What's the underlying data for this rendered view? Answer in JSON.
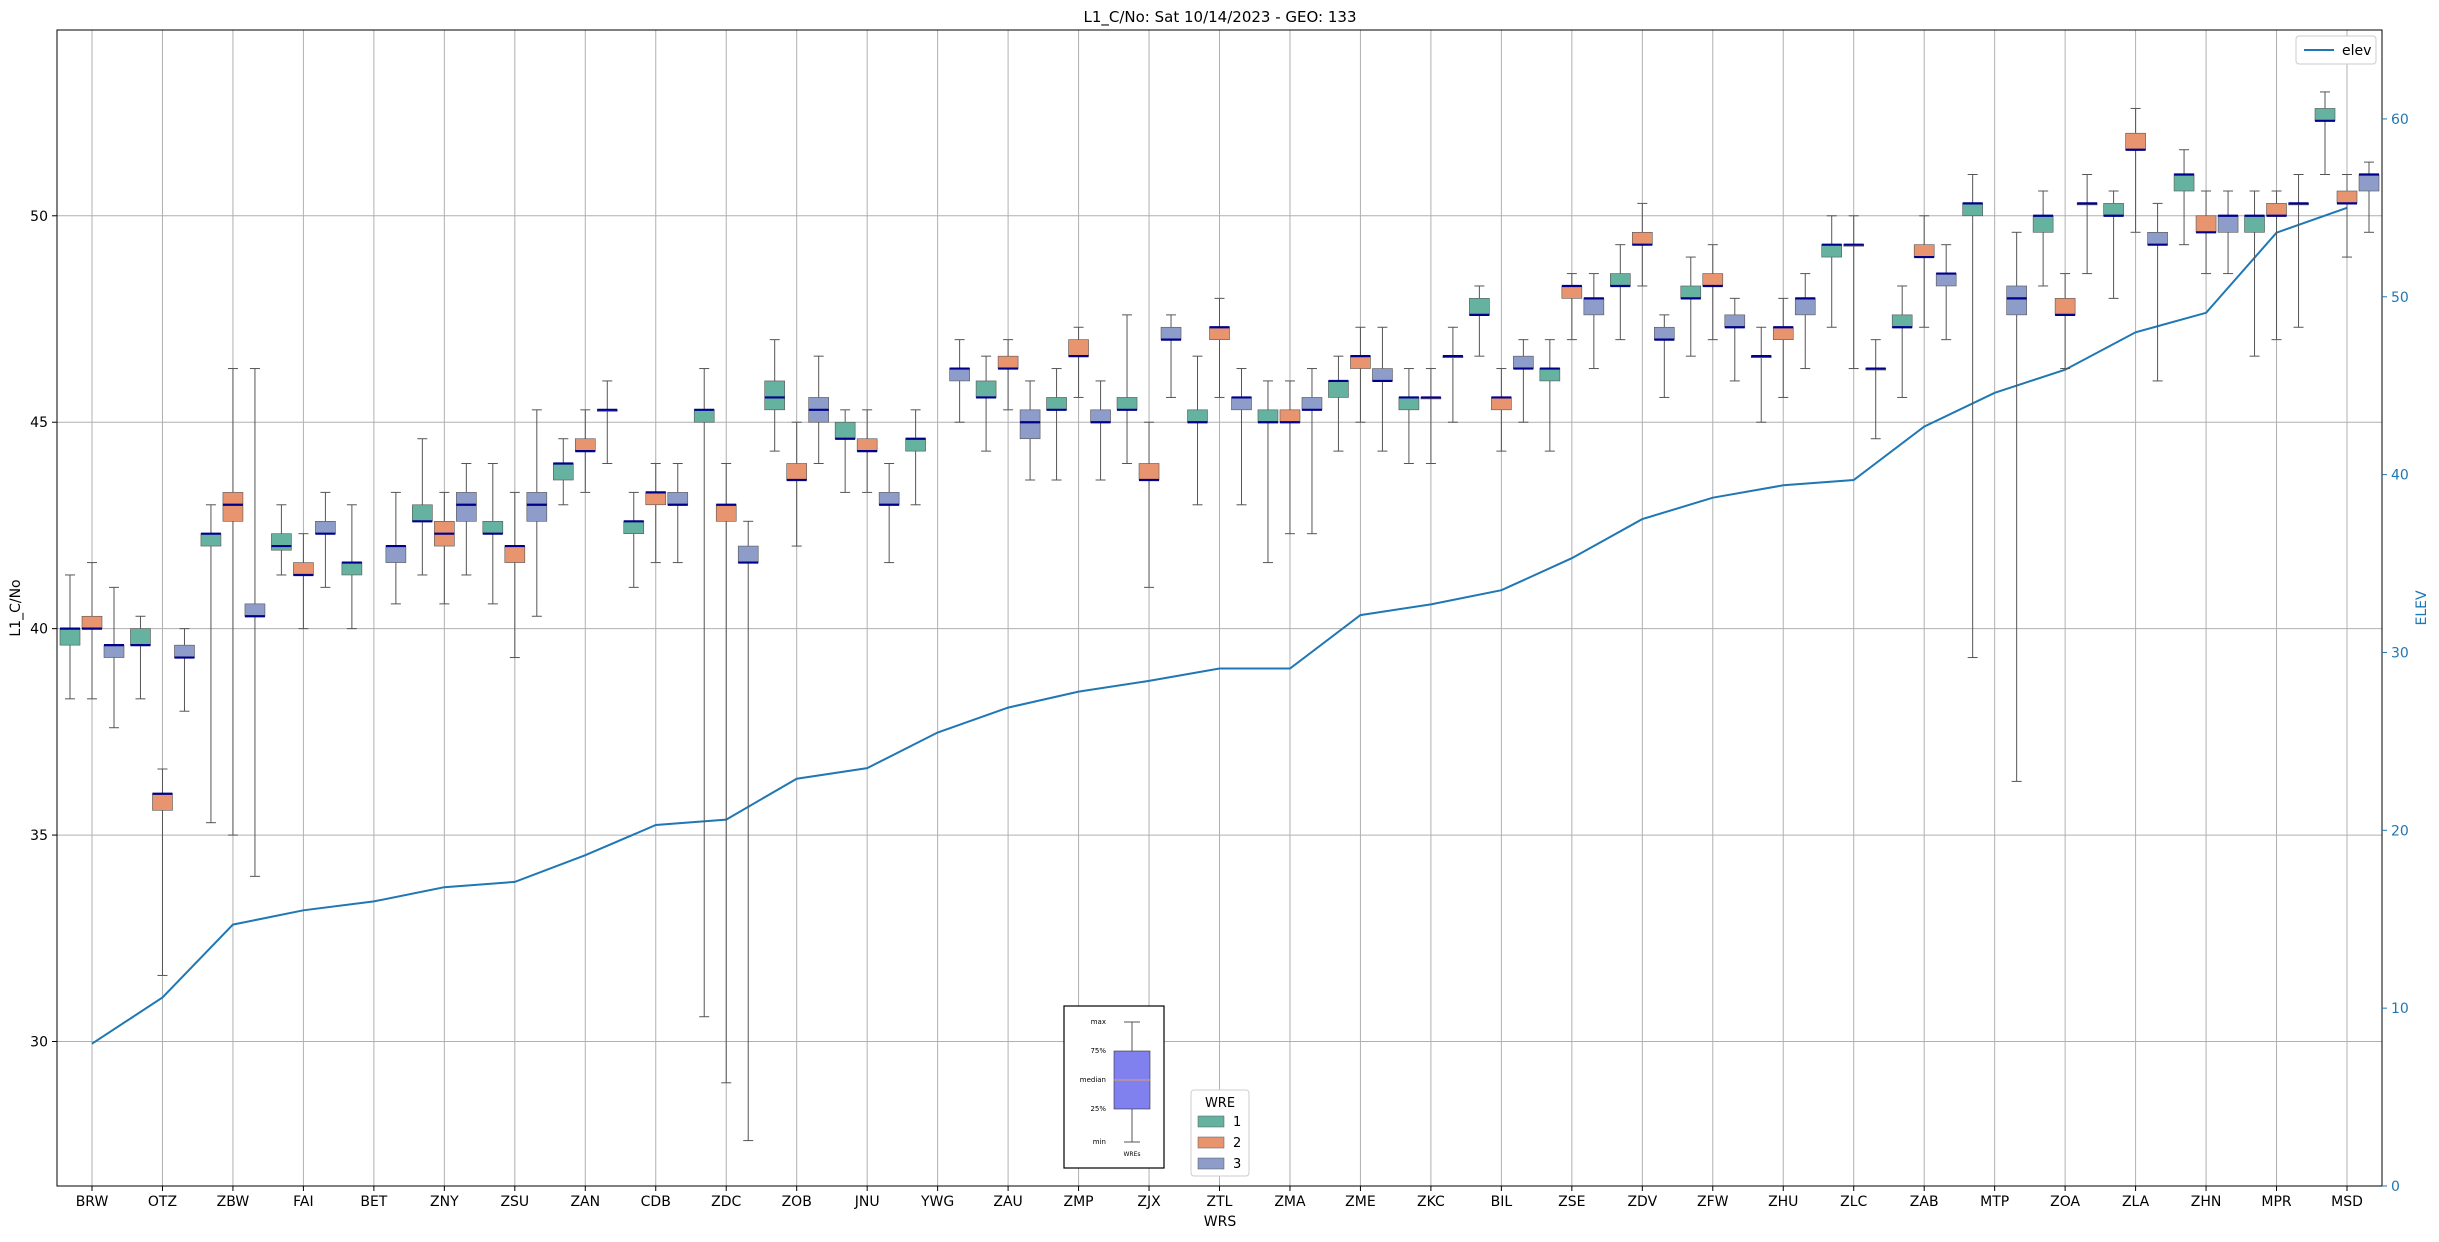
{
  "chart_data": {
    "type": "box",
    "title": "L1_C/No: Sat 10/14/2023 - GEO: 133",
    "xlabel": "WRS",
    "ylabel": "L1_C/No",
    "y2label": "ELEV",
    "ylim": [
      26.5,
      54.5
    ],
    "y2lim": [
      0,
      65
    ],
    "yticks": [
      30,
      35,
      40,
      45,
      50
    ],
    "y2ticks": [
      0,
      10,
      20,
      30,
      40,
      50,
      60
    ],
    "grid": true,
    "categories": [
      "BRW",
      "OTZ",
      "ZBW",
      "FAI",
      "BET",
      "ZNY",
      "ZSU",
      "ZAN",
      "CDB",
      "ZDC",
      "ZOB",
      "JNU",
      "YWG",
      "ZAU",
      "ZMP",
      "ZJX",
      "ZTL",
      "ZMA",
      "ZME",
      "ZKC",
      "BIL",
      "ZSE",
      "ZDV",
      "ZFW",
      "ZHU",
      "ZLC",
      "ZAB",
      "MTP",
      "ZOA",
      "ZLA",
      "ZHN",
      "MPR",
      "MSD"
    ],
    "colors": {
      "1": "#66b2a0",
      "2": "#e8956f",
      "3": "#8d9cc8",
      "median": "#00008b",
      "elev": "#1f77b4"
    },
    "legend_wre": {
      "title": "WRE",
      "position": "bottom-center",
      "entries": [
        {
          "label": "1",
          "color": "#66b2a0"
        },
        {
          "label": "2",
          "color": "#e8956f"
        },
        {
          "label": "3",
          "color": "#8d9cc8"
        }
      ]
    },
    "legend_elev": {
      "label": "elev",
      "position": "top-right"
    },
    "key_labels": {
      "max": "max",
      "p75": "75%",
      "median": "median",
      "p25": "25%",
      "min": "min",
      "wre": "WREs"
    },
    "elev": {
      "name": "elev",
      "values": [
        8.0,
        10.6,
        14.7,
        15.5,
        16.0,
        16.8,
        17.1,
        18.6,
        20.3,
        20.6,
        22.9,
        23.5,
        25.5,
        26.9,
        27.8,
        28.4,
        29.1,
        29.1,
        32.1,
        32.7,
        33.5,
        35.3,
        37.5,
        38.7,
        39.4,
        39.7,
        42.7,
        44.6,
        45.9,
        48.0,
        49.1,
        53.6,
        55.0
      ]
    },
    "boxes": [
      {
        "cat": "BRW",
        "wre": 1,
        "min": 38.3,
        "q1": 39.6,
        "med": 40.0,
        "q3": 40.0,
        "max": 41.3
      },
      {
        "cat": "BRW",
        "wre": 2,
        "min": 38.3,
        "q1": 40.0,
        "med": 40.0,
        "q3": 40.3,
        "max": 41.6
      },
      {
        "cat": "BRW",
        "wre": 3,
        "min": 37.6,
        "q1": 39.3,
        "med": 39.6,
        "q3": 39.6,
        "max": 41.0
      },
      {
        "cat": "OTZ",
        "wre": 1,
        "min": 38.3,
        "q1": 39.6,
        "med": 39.6,
        "q3": 40.0,
        "max": 40.3
      },
      {
        "cat": "OTZ",
        "wre": 2,
        "min": 31.6,
        "q1": 35.6,
        "med": 36.0,
        "q3": 36.0,
        "max": 36.6
      },
      {
        "cat": "OTZ",
        "wre": 3,
        "min": 38.0,
        "q1": 39.3,
        "med": 39.3,
        "q3": 39.6,
        "max": 40.0
      },
      {
        "cat": "ZBW",
        "wre": 1,
        "min": 35.3,
        "q1": 42.0,
        "med": 42.3,
        "q3": 42.3,
        "max": 43.0
      },
      {
        "cat": "ZBW",
        "wre": 2,
        "min": 35.0,
        "q1": 42.6,
        "med": 43.0,
        "q3": 43.3,
        "max": 46.3
      },
      {
        "cat": "ZBW",
        "wre": 3,
        "min": 34.0,
        "q1": 40.3,
        "med": 40.3,
        "q3": 40.6,
        "max": 46.3
      },
      {
        "cat": "FAI",
        "wre": 1,
        "min": 41.3,
        "q1": 41.9,
        "med": 42.0,
        "q3": 42.3,
        "max": 43.0
      },
      {
        "cat": "FAI",
        "wre": 2,
        "min": 40.0,
        "q1": 41.3,
        "med": 41.3,
        "q3": 41.6,
        "max": 42.3
      },
      {
        "cat": "FAI",
        "wre": 3,
        "min": 41.0,
        "q1": 42.3,
        "med": 42.3,
        "q3": 42.6,
        "max": 43.3
      },
      {
        "cat": "BET",
        "wre": 1,
        "min": 40.0,
        "q1": 41.3,
        "med": 41.6,
        "q3": 41.6,
        "max": 43.0
      },
      {
        "cat": "BET",
        "wre": 3,
        "min": 40.6,
        "q1": 41.6,
        "med": 42.0,
        "q3": 42.0,
        "max": 43.3
      },
      {
        "cat": "ZNY",
        "wre": 1,
        "min": 41.3,
        "q1": 42.6,
        "med": 42.6,
        "q3": 43.0,
        "max": 44.6
      },
      {
        "cat": "ZNY",
        "wre": 2,
        "min": 40.6,
        "q1": 42.0,
        "med": 42.3,
        "q3": 42.6,
        "max": 43.3
      },
      {
        "cat": "ZNY",
        "wre": 3,
        "min": 41.3,
        "q1": 42.6,
        "med": 43.0,
        "q3": 43.3,
        "max": 44.0
      },
      {
        "cat": "ZSU",
        "wre": 1,
        "min": 40.6,
        "q1": 42.3,
        "med": 42.3,
        "q3": 42.6,
        "max": 44.0
      },
      {
        "cat": "ZSU",
        "wre": 2,
        "min": 39.3,
        "q1": 41.6,
        "med": 42.0,
        "q3": 42.0,
        "max": 43.3
      },
      {
        "cat": "ZSU",
        "wre": 3,
        "min": 40.3,
        "q1": 42.6,
        "med": 43.0,
        "q3": 43.3,
        "max": 45.3
      },
      {
        "cat": "ZAN",
        "wre": 1,
        "min": 43.0,
        "q1": 43.6,
        "med": 44.0,
        "q3": 44.0,
        "max": 44.6
      },
      {
        "cat": "ZAN",
        "wre": 2,
        "min": 43.3,
        "q1": 44.3,
        "med": 44.3,
        "q3": 44.6,
        "max": 45.3
      },
      {
        "cat": "ZAN",
        "wre": 3,
        "min": 44.0,
        "q1": 45.3,
        "med": 45.3,
        "q3": 45.3,
        "max": 46.0
      },
      {
        "cat": "CDB",
        "wre": 1,
        "min": 41.0,
        "q1": 42.3,
        "med": 42.6,
        "q3": 42.6,
        "max": 43.3
      },
      {
        "cat": "CDB",
        "wre": 2,
        "min": 41.6,
        "q1": 43.0,
        "med": 43.3,
        "q3": 43.3,
        "max": 44.0
      },
      {
        "cat": "CDB",
        "wre": 3,
        "min": 41.6,
        "q1": 43.0,
        "med": 43.0,
        "q3": 43.3,
        "max": 44.0
      },
      {
        "cat": "ZDC",
        "wre": 1,
        "min": 30.6,
        "q1": 45.0,
        "med": 45.3,
        "q3": 45.3,
        "max": 46.3
      },
      {
        "cat": "ZDC",
        "wre": 2,
        "min": 29.0,
        "q1": 42.6,
        "med": 43.0,
        "q3": 43.0,
        "max": 44.0
      },
      {
        "cat": "ZDC",
        "wre": 3,
        "min": 27.6,
        "q1": 41.6,
        "med": 41.6,
        "q3": 42.0,
        "max": 42.6
      },
      {
        "cat": "ZOB",
        "wre": 1,
        "min": 44.3,
        "q1": 45.3,
        "med": 45.6,
        "q3": 46.0,
        "max": 47.0
      },
      {
        "cat": "ZOB",
        "wre": 2,
        "min": 42.0,
        "q1": 43.6,
        "med": 43.6,
        "q3": 44.0,
        "max": 45.0
      },
      {
        "cat": "ZOB",
        "wre": 3,
        "min": 44.0,
        "q1": 45.0,
        "med": 45.3,
        "q3": 45.6,
        "max": 46.6
      },
      {
        "cat": "JNU",
        "wre": 1,
        "min": 43.3,
        "q1": 44.6,
        "med": 44.6,
        "q3": 45.0,
        "max": 45.3
      },
      {
        "cat": "JNU",
        "wre": 2,
        "min": 43.3,
        "q1": 44.3,
        "med": 44.3,
        "q3": 44.6,
        "max": 45.3
      },
      {
        "cat": "JNU",
        "wre": 3,
        "min": 41.6,
        "q1": 43.0,
        "med": 43.0,
        "q3": 43.3,
        "max": 44.0
      },
      {
        "cat": "YWG",
        "wre": 1,
        "min": 43.0,
        "q1": 44.3,
        "med": 44.6,
        "q3": 44.6,
        "max": 45.3
      },
      {
        "cat": "YWG",
        "wre": 3,
        "min": 45.0,
        "q1": 46.0,
        "med": 46.3,
        "q3": 46.3,
        "max": 47.0
      },
      {
        "cat": "ZAU",
        "wre": 1,
        "min": 44.3,
        "q1": 45.6,
        "med": 45.6,
        "q3": 46.0,
        "max": 46.6
      },
      {
        "cat": "ZAU",
        "wre": 2,
        "min": 45.3,
        "q1": 46.3,
        "med": 46.3,
        "q3": 46.6,
        "max": 47.0
      },
      {
        "cat": "ZAU",
        "wre": 3,
        "min": 43.6,
        "q1": 44.6,
        "med": 45.0,
        "q3": 45.3,
        "max": 46.0
      },
      {
        "cat": "ZMP",
        "wre": 1,
        "min": 43.6,
        "q1": 45.3,
        "med": 45.3,
        "q3": 45.6,
        "max": 46.3
      },
      {
        "cat": "ZMP",
        "wre": 2,
        "min": 45.6,
        "q1": 46.6,
        "med": 46.6,
        "q3": 47.0,
        "max": 47.3
      },
      {
        "cat": "ZMP",
        "wre": 3,
        "min": 43.6,
        "q1": 45.0,
        "med": 45.0,
        "q3": 45.3,
        "max": 46.0
      },
      {
        "cat": "ZJX",
        "wre": 1,
        "min": 44.0,
        "q1": 45.3,
        "med": 45.3,
        "q3": 45.6,
        "max": 47.6
      },
      {
        "cat": "ZJX",
        "wre": 2,
        "min": 41.0,
        "q1": 43.6,
        "med": 43.6,
        "q3": 44.0,
        "max": 45.0
      },
      {
        "cat": "ZJX",
        "wre": 3,
        "min": 45.6,
        "q1": 47.0,
        "med": 47.0,
        "q3": 47.3,
        "max": 47.6
      },
      {
        "cat": "ZTL",
        "wre": 1,
        "min": 43.0,
        "q1": 45.0,
        "med": 45.0,
        "q3": 45.3,
        "max": 46.6
      },
      {
        "cat": "ZTL",
        "wre": 2,
        "min": 45.6,
        "q1": 47.0,
        "med": 47.3,
        "q3": 47.3,
        "max": 48.0
      },
      {
        "cat": "ZTL",
        "wre": 3,
        "min": 43.0,
        "q1": 45.3,
        "med": 45.6,
        "q3": 45.6,
        "max": 46.3
      },
      {
        "cat": "ZMA",
        "wre": 1,
        "min": 41.6,
        "q1": 45.0,
        "med": 45.0,
        "q3": 45.3,
        "max": 46.0
      },
      {
        "cat": "ZMA",
        "wre": 2,
        "min": 42.3,
        "q1": 45.0,
        "med": 45.0,
        "q3": 45.3,
        "max": 46.0
      },
      {
        "cat": "ZMA",
        "wre": 3,
        "min": 42.3,
        "q1": 45.3,
        "med": 45.3,
        "q3": 45.6,
        "max": 46.3
      },
      {
        "cat": "ZME",
        "wre": 1,
        "min": 44.3,
        "q1": 45.6,
        "med": 46.0,
        "q3": 46.0,
        "max": 46.6
      },
      {
        "cat": "ZME",
        "wre": 2,
        "min": 45.0,
        "q1": 46.3,
        "med": 46.6,
        "q3": 46.6,
        "max": 47.3
      },
      {
        "cat": "ZME",
        "wre": 3,
        "min": 44.3,
        "q1": 46.0,
        "med": 46.0,
        "q3": 46.3,
        "max": 47.3
      },
      {
        "cat": "ZKC",
        "wre": 1,
        "min": 44.0,
        "q1": 45.3,
        "med": 45.6,
        "q3": 45.6,
        "max": 46.3
      },
      {
        "cat": "ZKC",
        "wre": 2,
        "min": 44.0,
        "q1": 45.6,
        "med": 45.6,
        "q3": 45.6,
        "max": 46.3
      },
      {
        "cat": "ZKC",
        "wre": 3,
        "min": 45.0,
        "q1": 46.6,
        "med": 46.6,
        "q3": 46.6,
        "max": 47.3
      },
      {
        "cat": "BIL",
        "wre": 1,
        "min": 46.6,
        "q1": 47.6,
        "med": 47.6,
        "q3": 48.0,
        "max": 48.3
      },
      {
        "cat": "BIL",
        "wre": 2,
        "min": 44.3,
        "q1": 45.3,
        "med": 45.6,
        "q3": 45.6,
        "max": 46.3
      },
      {
        "cat": "BIL",
        "wre": 3,
        "min": 45.0,
        "q1": 46.3,
        "med": 46.3,
        "q3": 46.6,
        "max": 47.0
      },
      {
        "cat": "ZSE",
        "wre": 1,
        "min": 44.3,
        "q1": 46.0,
        "med": 46.3,
        "q3": 46.3,
        "max": 47.0
      },
      {
        "cat": "ZSE",
        "wre": 2,
        "min": 47.0,
        "q1": 48.0,
        "med": 48.3,
        "q3": 48.3,
        "max": 48.6
      },
      {
        "cat": "ZSE",
        "wre": 3,
        "min": 46.3,
        "q1": 47.6,
        "med": 48.0,
        "q3": 48.0,
        "max": 48.6
      },
      {
        "cat": "ZDV",
        "wre": 1,
        "min": 47.0,
        "q1": 48.3,
        "med": 48.3,
        "q3": 48.6,
        "max": 49.3
      },
      {
        "cat": "ZDV",
        "wre": 2,
        "min": 48.3,
        "q1": 49.3,
        "med": 49.3,
        "q3": 49.6,
        "max": 50.3
      },
      {
        "cat": "ZDV",
        "wre": 3,
        "min": 45.6,
        "q1": 47.0,
        "med": 47.0,
        "q3": 47.3,
        "max": 47.6
      },
      {
        "cat": "ZFW",
        "wre": 1,
        "min": 46.6,
        "q1": 48.0,
        "med": 48.0,
        "q3": 48.3,
        "max": 49.0
      },
      {
        "cat": "ZFW",
        "wre": 2,
        "min": 47.0,
        "q1": 48.3,
        "med": 48.3,
        "q3": 48.6,
        "max": 49.3
      },
      {
        "cat": "ZFW",
        "wre": 3,
        "min": 46.0,
        "q1": 47.3,
        "med": 47.3,
        "q3": 47.6,
        "max": 48.0
      },
      {
        "cat": "ZHU",
        "wre": 1,
        "min": 45.0,
        "q1": 46.6,
        "med": 46.6,
        "q3": 46.6,
        "max": 47.3
      },
      {
        "cat": "ZHU",
        "wre": 2,
        "min": 45.6,
        "q1": 47.0,
        "med": 47.3,
        "q3": 47.3,
        "max": 48.0
      },
      {
        "cat": "ZHU",
        "wre": 3,
        "min": 46.3,
        "q1": 47.6,
        "med": 48.0,
        "q3": 48.0,
        "max": 48.6
      },
      {
        "cat": "ZLC",
        "wre": 1,
        "min": 47.3,
        "q1": 49.0,
        "med": 49.3,
        "q3": 49.3,
        "max": 50.0
      },
      {
        "cat": "ZLC",
        "wre": 2,
        "min": 46.3,
        "q1": 49.3,
        "med": 49.3,
        "q3": 49.3,
        "max": 50.0
      },
      {
        "cat": "ZLC",
        "wre": 3,
        "min": 44.6,
        "q1": 46.3,
        "med": 46.3,
        "q3": 46.3,
        "max": 47.0
      },
      {
        "cat": "ZAB",
        "wre": 1,
        "min": 45.6,
        "q1": 47.3,
        "med": 47.3,
        "q3": 47.6,
        "max": 48.3
      },
      {
        "cat": "ZAB",
        "wre": 2,
        "min": 47.3,
        "q1": 49.0,
        "med": 49.0,
        "q3": 49.3,
        "max": 50.0
      },
      {
        "cat": "ZAB",
        "wre": 3,
        "min": 47.0,
        "q1": 48.3,
        "med": 48.6,
        "q3": 48.6,
        "max": 49.3
      },
      {
        "cat": "MTP",
        "wre": 1,
        "min": 39.3,
        "q1": 50.0,
        "med": 50.3,
        "q3": 50.3,
        "max": 51.0
      },
      {
        "cat": "MTP",
        "wre": 3,
        "min": 36.3,
        "q1": 47.6,
        "med": 48.0,
        "q3": 48.3,
        "max": 49.6
      },
      {
        "cat": "ZOA",
        "wre": 1,
        "min": 48.3,
        "q1": 49.6,
        "med": 50.0,
        "q3": 50.0,
        "max": 50.6
      },
      {
        "cat": "ZOA",
        "wre": 2,
        "min": 46.3,
        "q1": 47.6,
        "med": 47.6,
        "q3": 48.0,
        "max": 48.6
      },
      {
        "cat": "ZOA",
        "wre": 3,
        "min": 48.6,
        "q1": 50.3,
        "med": 50.3,
        "q3": 50.3,
        "max": 51.0
      },
      {
        "cat": "ZLA",
        "wre": 1,
        "min": 48.0,
        "q1": 50.0,
        "med": 50.0,
        "q3": 50.3,
        "max": 50.6
      },
      {
        "cat": "ZLA",
        "wre": 2,
        "min": 49.6,
        "q1": 51.6,
        "med": 51.6,
        "q3": 52.0,
        "max": 52.6
      },
      {
        "cat": "ZLA",
        "wre": 3,
        "min": 46.0,
        "q1": 49.3,
        "med": 49.3,
        "q3": 49.6,
        "max": 50.3
      },
      {
        "cat": "ZHN",
        "wre": 1,
        "min": 49.3,
        "q1": 50.6,
        "med": 51.0,
        "q3": 51.0,
        "max": 51.6
      },
      {
        "cat": "ZHN",
        "wre": 2,
        "min": 48.6,
        "q1": 49.6,
        "med": 49.6,
        "q3": 50.0,
        "max": 50.6
      },
      {
        "cat": "ZHN",
        "wre": 3,
        "min": 48.6,
        "q1": 49.6,
        "med": 50.0,
        "q3": 50.0,
        "max": 50.6
      },
      {
        "cat": "MPR",
        "wre": 1,
        "min": 46.6,
        "q1": 49.6,
        "med": 50.0,
        "q3": 50.0,
        "max": 50.6
      },
      {
        "cat": "MPR",
        "wre": 2,
        "min": 47.0,
        "q1": 50.0,
        "med": 50.0,
        "q3": 50.3,
        "max": 50.6
      },
      {
        "cat": "MPR",
        "wre": 3,
        "min": 47.3,
        "q1": 50.3,
        "med": 50.3,
        "q3": 50.3,
        "max": 51.0
      },
      {
        "cat": "MSD",
        "wre": 1,
        "min": 51.0,
        "q1": 52.3,
        "med": 52.3,
        "q3": 52.6,
        "max": 53.0
      },
      {
        "cat": "MSD",
        "wre": 2,
        "min": 49.0,
        "q1": 50.3,
        "med": 50.3,
        "q3": 50.6,
        "max": 51.0
      },
      {
        "cat": "MSD",
        "wre": 3,
        "min": 49.6,
        "q1": 50.6,
        "med": 51.0,
        "q3": 51.0,
        "max": 51.3
      }
    ]
  }
}
